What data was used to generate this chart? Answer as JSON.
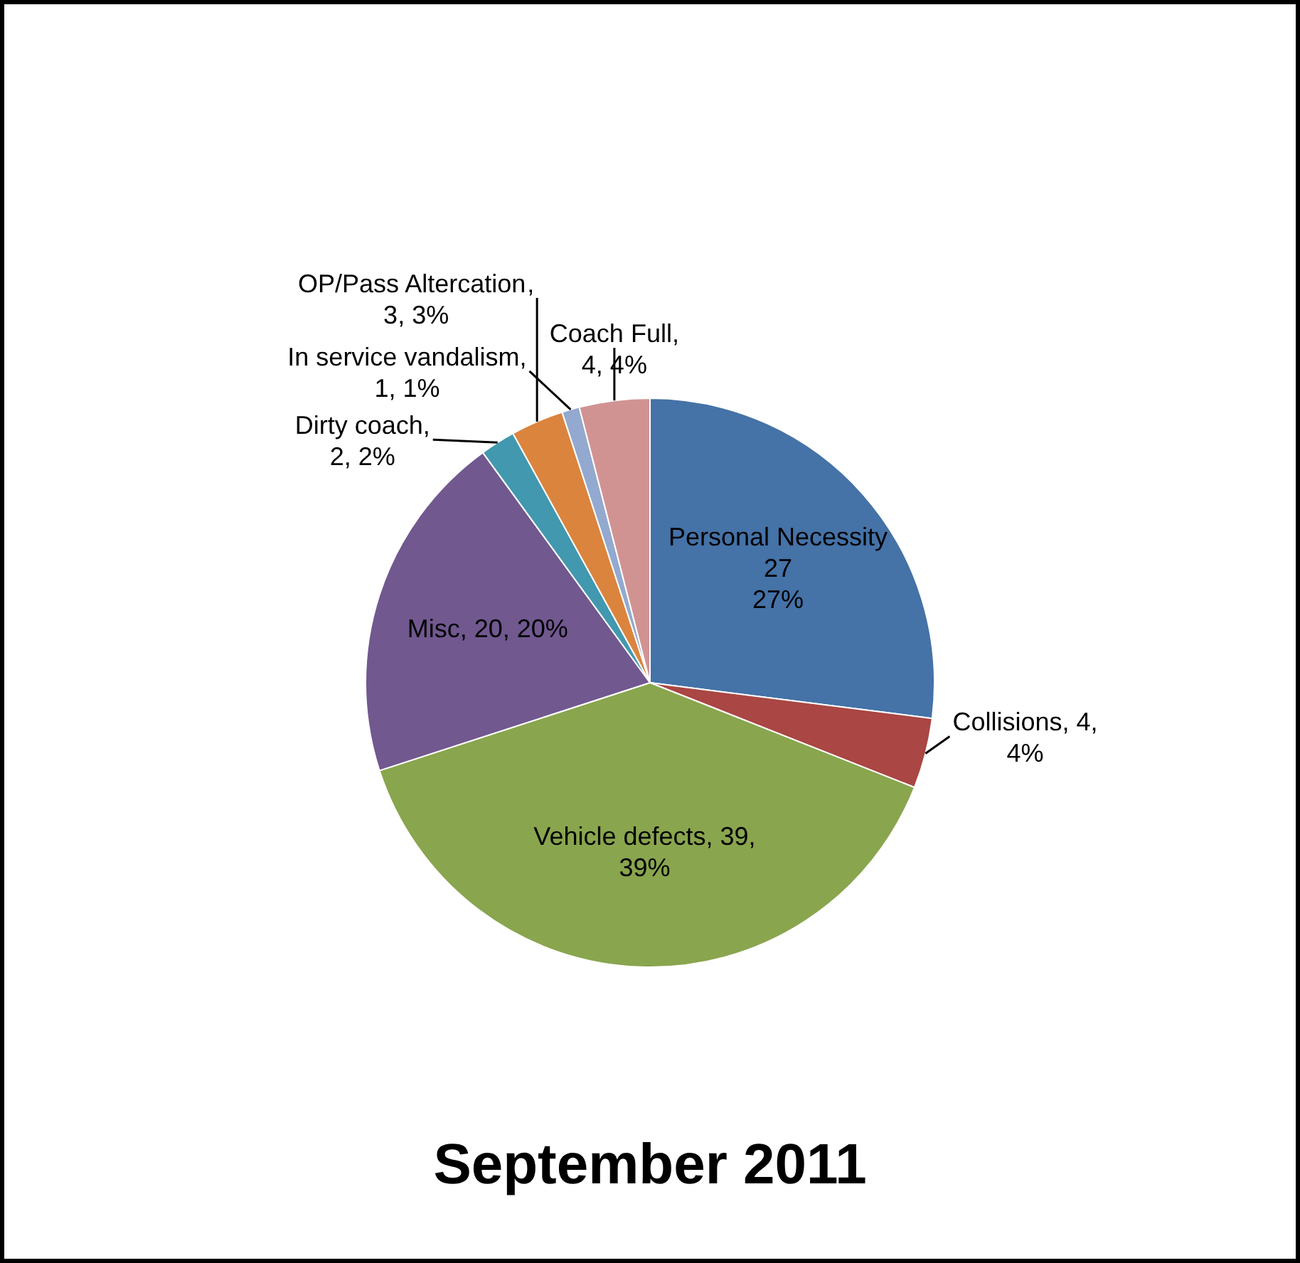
{
  "chart_data": {
    "type": "pie",
    "title": "September 2011",
    "categories": [
      "Personal Necessity",
      "Collisions",
      "Vehicle defects",
      "Misc",
      "Dirty coach",
      "OP/Pass Altercation",
      "In service vandalism",
      "Coach Full"
    ],
    "values": [
      27,
      4,
      39,
      20,
      2,
      3,
      1,
      4
    ],
    "colors": [
      "#4572a7",
      "#aa4643",
      "#89a54e",
      "#71588f",
      "#4198af",
      "#db843d",
      "#93a9cf",
      "#d19392"
    ],
    "value_labels": [
      "\n27\n27%",
      ", 4,\n4%",
      ", 39,\n39%",
      ", 20, 20%",
      ",\n2, 2%",
      ",\n3, 3%",
      ",\n1, 1%",
      ",\n4, 4%"
    ]
  }
}
